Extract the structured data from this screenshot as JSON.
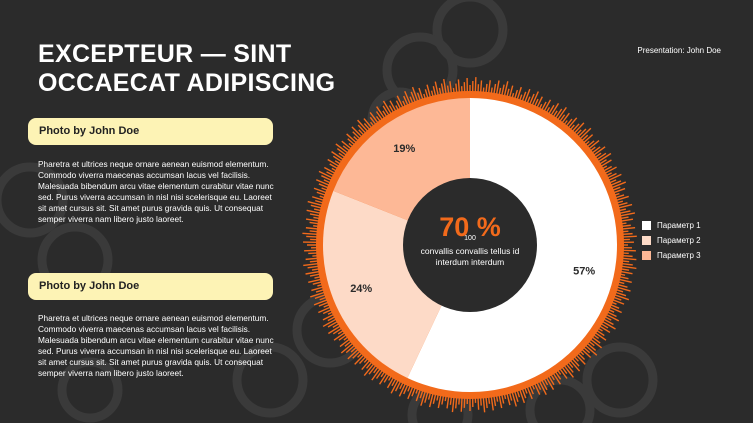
{
  "slide": {
    "title": "EXCEPTEUR — SINT OCCAECAT ADIPISCING",
    "presenter": "Presentation: John Doe"
  },
  "sections": [
    {
      "tag": "Photo by John Doe",
      "text": "Pharetra et ultrices neque ornare aenean euismod elementum. Commodo viverra maecenas accumsan lacus vel facilisis. Malesuada bibendum arcu vitae elementum curabitur vitae nunc sed. Purus viverra accumsan in nisl nisi scelerisque eu. Laoreet sit amet cursus sit. Sit amet purus gravida quis. Ut consequat semper viverra nam libero justo laoreet."
    },
    {
      "tag": "Photo by John Doe",
      "text": "Pharetra et ultrices neque ornare aenean euismod elementum. Commodo viverra maecenas accumsan lacus vel facilisis. Malesuada bibendum arcu vitae elementum curabitur vitae nunc sed. Purus viverra accumsan in nisl nisi scelerisque eu. Laoreet sit amet cursus sit. Sit amet purus gravida quis. Ut consequat semper viverra nam libero justo laoreet."
    }
  ],
  "chart_data": {
    "type": "pie",
    "variant": "doughnut",
    "categories": [
      "Параметр 1",
      "Параметр 2",
      "Параметр 3"
    ],
    "values": [
      57,
      24,
      19
    ],
    "labels": [
      "57%",
      "24%",
      "19%"
    ],
    "colors": [
      "#ffffff",
      "#fddac7",
      "#fdb896"
    ],
    "legend_position": "right",
    "center": {
      "value": "70 %",
      "sub_value": "100",
      "caption": "convallis convallis tellus id interdum interdum",
      "value_color": "#f26a1b"
    },
    "ring_color": "#f26a1b"
  }
}
